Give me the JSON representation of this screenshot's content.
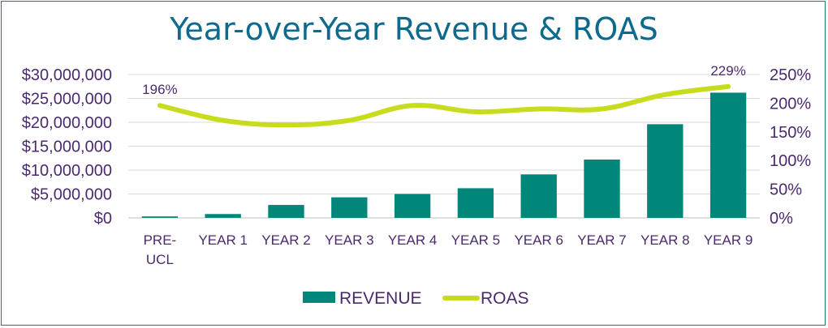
{
  "chart_data": {
    "type": "bar",
    "title": "Year-over-Year Revenue & ROAS",
    "categories": [
      [
        "PRE-",
        "UCL"
      ],
      [
        "YEAR 1"
      ],
      [
        "YEAR 2"
      ],
      [
        "YEAR 3"
      ],
      [
        "YEAR 4"
      ],
      [
        "YEAR 5"
      ],
      [
        "YEAR 6"
      ],
      [
        "YEAR 7"
      ],
      [
        "YEAR 8"
      ],
      [
        "YEAR 9"
      ]
    ],
    "series": [
      {
        "name": "REVENUE",
        "type": "bar",
        "axis": "left",
        "color": "#00877a",
        "values": [
          300000,
          800000,
          2700000,
          4300000,
          5000000,
          6200000,
          9100000,
          12200000,
          19600000,
          26200000
        ]
      },
      {
        "name": "ROAS",
        "type": "line",
        "axis": "right",
        "color": "#c8dc1e",
        "values": [
          196,
          170,
          162,
          170,
          196,
          185,
          190,
          190,
          215,
          229
        ]
      }
    ],
    "y_left": {
      "min": 0,
      "max": 30000000,
      "ticks": [
        "$0",
        "$5,000,000",
        "$10,000,000",
        "$15,000,000",
        "$20,000,000",
        "$25,000,000",
        "$30,000,000"
      ]
    },
    "y_right": {
      "min": 0,
      "max": 250,
      "ticks": [
        "0%",
        "50%",
        "100%",
        "150%",
        "200%",
        "250%"
      ]
    },
    "data_labels": [
      {
        "series": "ROAS",
        "index": 0,
        "text": "196%"
      },
      {
        "series": "ROAS",
        "index": 9,
        "text": "229%"
      }
    ],
    "grid": true,
    "legend_position": "bottom"
  }
}
